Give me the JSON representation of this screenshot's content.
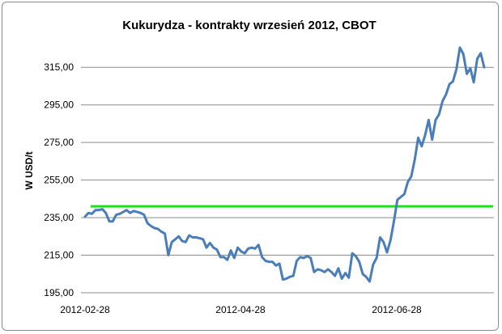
{
  "chart_data": {
    "type": "line",
    "title": "Kukurydza - kontrakty wrzesień 2012, CBOT",
    "xlabel": "",
    "ylabel": "W USD/t",
    "ylim": [
      195,
      325
    ],
    "yticks": [
      "195,00",
      "215,00",
      "235,00",
      "255,00",
      "275,00",
      "295,00",
      "315,00"
    ],
    "ytick_values": [
      195,
      215,
      235,
      255,
      275,
      295,
      315
    ],
    "xticks": [
      "2012-02-28",
      "2012-04-28",
      "2012-06-28"
    ],
    "grid": true,
    "legend": "none",
    "reference_line": {
      "value": 241,
      "color": "#22dd22"
    },
    "series": [
      {
        "color": "#4a7ebb",
        "values": [
          235.5,
          237.5,
          237.0,
          239.0,
          239.0,
          239.5,
          237.5,
          233.0,
          233.0,
          236.5,
          237.0,
          238.0,
          239.0,
          237.5,
          238.5,
          238.0,
          237.5,
          236.5,
          232.0,
          230.5,
          229.5,
          229.0,
          227.5,
          226.5,
          215.0,
          222.0,
          223.5,
          225.0,
          222.5,
          222.0,
          225.5,
          224.5,
          224.5,
          224.0,
          223.5,
          219.0,
          221.5,
          219.0,
          218.0,
          214.0,
          214.0,
          212.5,
          217.5,
          213.5,
          219.0,
          217.0,
          216.0,
          218.5,
          219.0,
          218.5,
          220.5,
          214.0,
          212.0,
          211.5,
          211.5,
          209.5,
          210.5,
          202.0,
          202.5,
          203.5,
          204.0,
          212.0,
          214.0,
          213.5,
          214.5,
          213.5,
          206.0,
          207.5,
          207.0,
          206.0,
          207.5,
          206.0,
          204.0,
          208.0,
          202.5,
          205.5,
          203.0,
          216.0,
          214.5,
          211.5,
          205.0,
          203.5,
          201.0,
          210.0,
          213.5,
          224.5,
          222.0,
          216.5,
          223.0,
          233.0,
          244.5,
          246.0,
          247.5,
          254.0,
          257.0,
          266.0,
          277.5,
          273.0,
          279.0,
          287.0,
          276.5,
          287.0,
          290.0,
          297.0,
          300.5,
          306.0,
          307.5,
          314.0,
          325.5,
          322.0,
          311.5,
          314.5,
          307.0,
          319.5,
          322.5,
          315.0
        ]
      }
    ]
  }
}
